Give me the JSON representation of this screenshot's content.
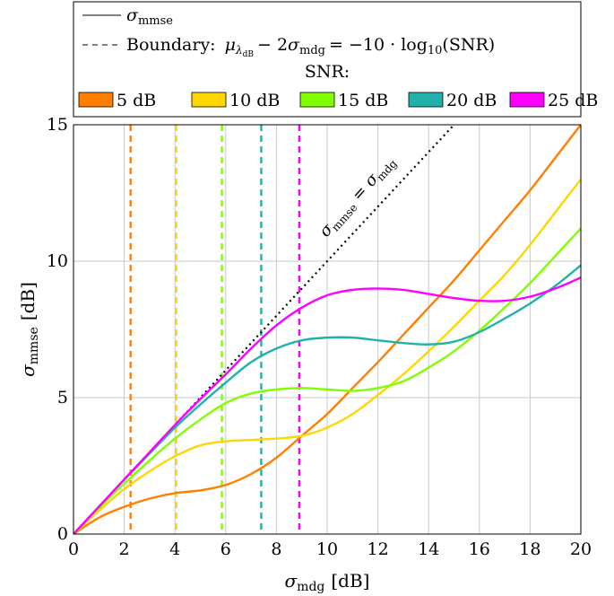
{
  "chart_data": {
    "type": "line",
    "title": "",
    "xlabel": "σ_mdg [dB]",
    "ylabel": "σ_mmse [dB]",
    "xlabel_main": "σ",
    "xlabel_sub": "mdg",
    "xlabel_unit": "[dB]",
    "ylabel_main": "σ",
    "ylabel_sub": "mmse",
    "ylabel_unit": "[dB]",
    "xlim": [
      0,
      20
    ],
    "ylim": [
      0,
      15
    ],
    "xticks": [
      "0",
      "2",
      "4",
      "6",
      "8",
      "10",
      "12",
      "14",
      "16",
      "18",
      "20"
    ],
    "yticks": [
      "0",
      "5",
      "10",
      "15"
    ],
    "grid": true,
    "legend": {
      "position": "above",
      "solid_entry": "σmmse",
      "solid_main": "σ",
      "solid_sub": "mmse",
      "dashed_entry": "Boundary: μλdB − 2σmdg = −10 · log10(SNR)",
      "dashed_prefix": "Boundary:",
      "snr_title": "SNR:"
    },
    "annotation": "σmmse = σmdg",
    "annotation_parts": {
      "sym": "σ",
      "sub1": "mmse",
      "eq": "=",
      "sub2": "mdg"
    },
    "series": [
      {
        "name": "5 dB",
        "color": "#ff8000",
        "boundary_x": 2.25,
        "x": [
          0,
          1,
          2,
          3,
          4,
          5,
          6,
          7,
          8,
          9,
          10,
          11,
          12,
          13,
          14,
          15,
          16,
          17,
          18,
          19,
          20
        ],
        "y": [
          0,
          0.6,
          1.0,
          1.3,
          1.5,
          1.6,
          1.8,
          2.2,
          2.8,
          3.6,
          4.4,
          5.35,
          6.3,
          7.3,
          8.3,
          9.3,
          10.4,
          11.5,
          12.6,
          13.8,
          15.0
        ]
      },
      {
        "name": "10 dB",
        "color": "#ffd700",
        "boundary_x": 4.05,
        "x": [
          0,
          1,
          2,
          3,
          4,
          5,
          6,
          7,
          8,
          9,
          10,
          11,
          12,
          13,
          14,
          15,
          16,
          17,
          18,
          19,
          20
        ],
        "y": [
          0,
          0.85,
          1.65,
          2.3,
          2.85,
          3.25,
          3.4,
          3.45,
          3.5,
          3.6,
          3.9,
          4.4,
          5.1,
          5.85,
          6.7,
          7.6,
          8.55,
          9.5,
          10.6,
          11.8,
          13.0
        ]
      },
      {
        "name": "15 dB",
        "color": "#80ff00",
        "boundary_x": 5.85,
        "x": [
          0,
          1,
          2,
          3,
          4,
          5,
          6,
          7,
          8,
          9,
          10,
          11,
          12,
          13,
          14,
          15,
          16,
          17,
          18,
          19,
          20
        ],
        "y": [
          0,
          0.95,
          1.85,
          2.7,
          3.5,
          4.2,
          4.8,
          5.15,
          5.3,
          5.35,
          5.3,
          5.25,
          5.35,
          5.6,
          6.1,
          6.7,
          7.45,
          8.3,
          9.2,
          10.2,
          11.2
        ]
      },
      {
        "name": "20 dB",
        "color": "#20b2aa",
        "boundary_x": 7.4,
        "x": [
          0,
          1,
          2,
          3,
          4,
          5,
          6,
          7,
          8,
          9,
          10,
          11,
          12,
          13,
          14,
          15,
          16,
          17,
          18,
          19,
          20
        ],
        "y": [
          0,
          1.0,
          2.0,
          2.95,
          3.9,
          4.75,
          5.55,
          6.3,
          6.8,
          7.1,
          7.2,
          7.2,
          7.1,
          7.0,
          6.95,
          7.05,
          7.4,
          7.9,
          8.45,
          9.1,
          9.85
        ]
      },
      {
        "name": "25 dB",
        "color": "#ff00ff",
        "boundary_x": 8.9,
        "x": [
          0,
          1,
          2,
          3,
          4,
          5,
          6,
          7,
          8,
          9,
          10,
          11,
          12,
          13,
          14,
          15,
          16,
          17,
          18,
          19,
          20
        ],
        "y": [
          0,
          1.0,
          2.0,
          3.0,
          4.0,
          4.95,
          5.85,
          6.8,
          7.65,
          8.3,
          8.75,
          8.95,
          9.0,
          8.95,
          8.8,
          8.65,
          8.55,
          8.55,
          8.7,
          9.0,
          9.4
        ]
      }
    ],
    "identity_line": {
      "x": [
        0,
        15
      ],
      "y": [
        0,
        15
      ]
    }
  }
}
